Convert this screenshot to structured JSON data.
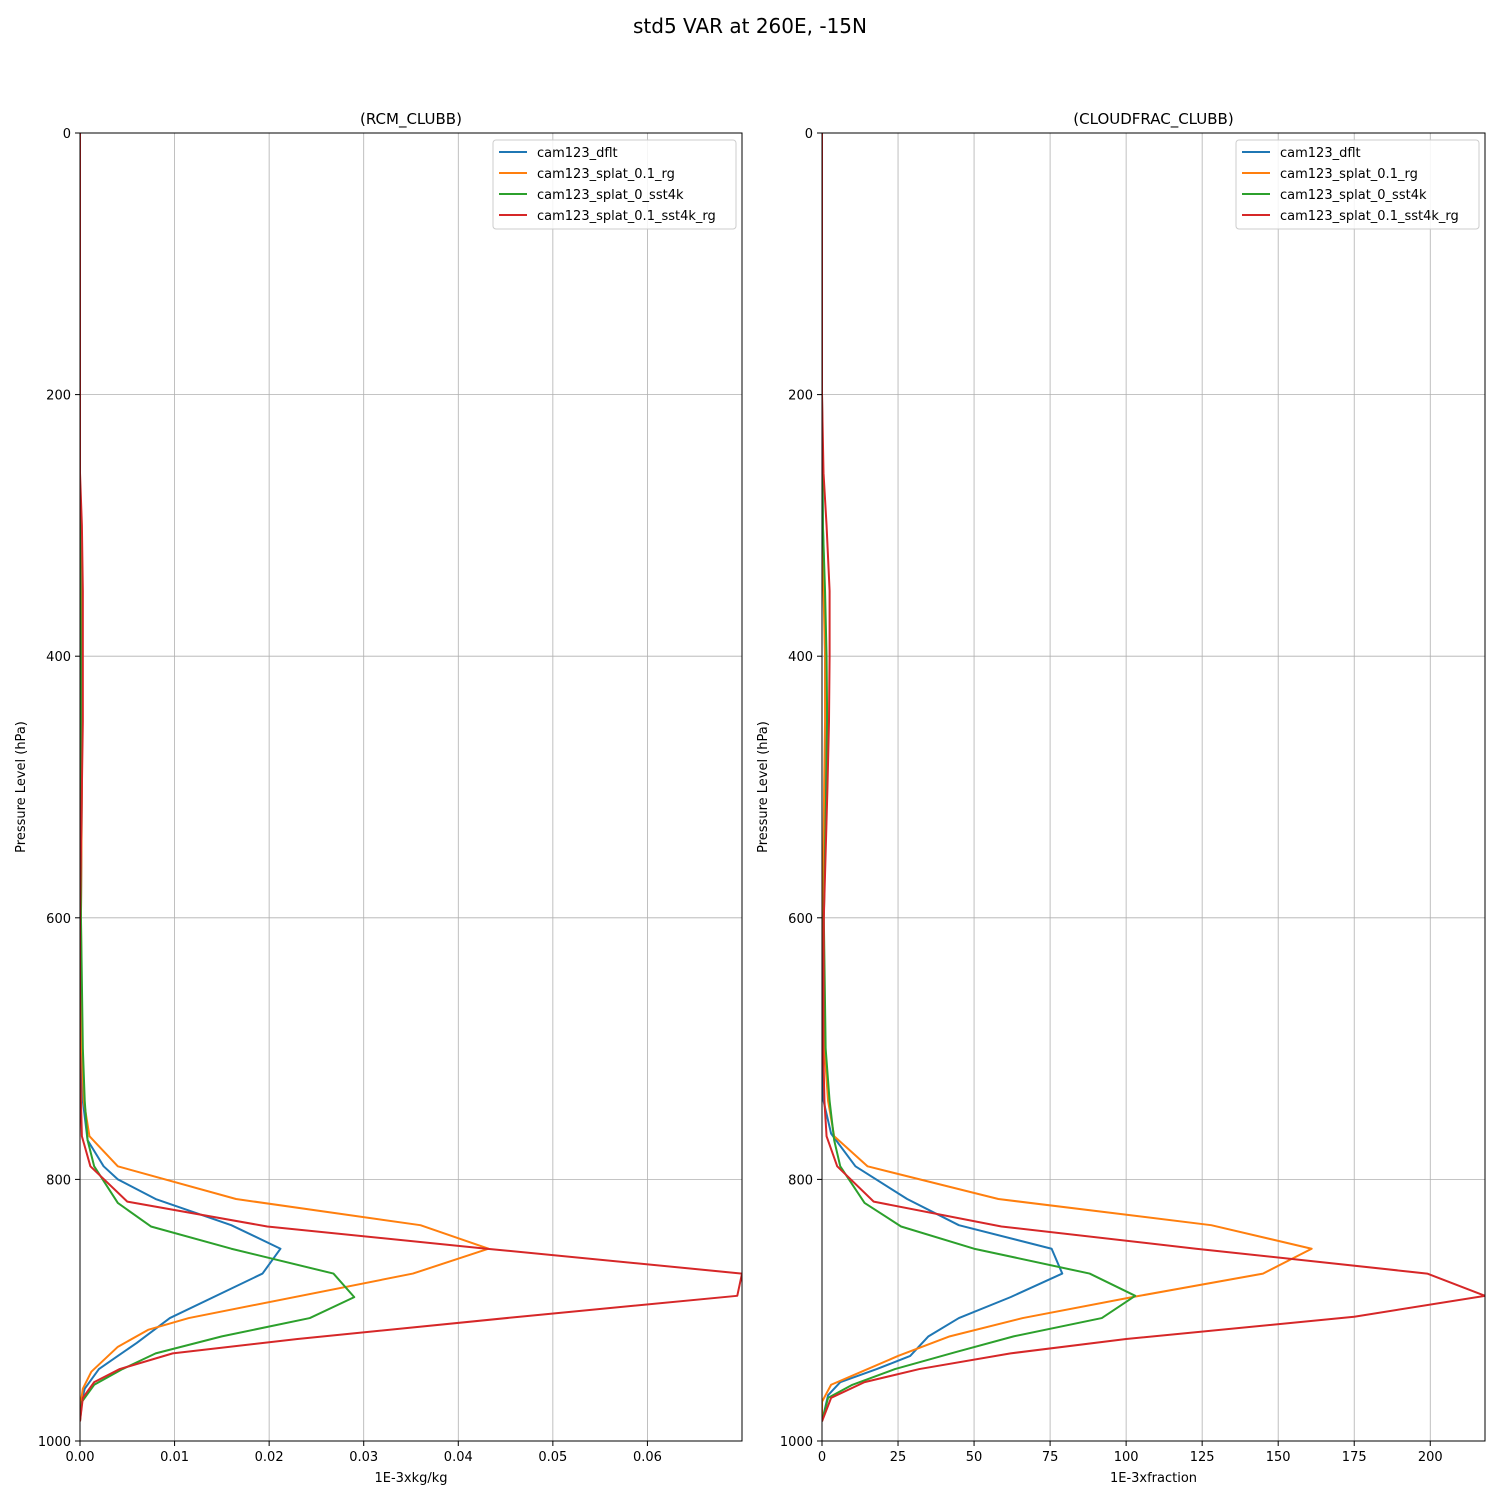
{
  "figure": {
    "title": "std5 VAR at 260E, -15N"
  },
  "chart_data": [
    {
      "type": "line",
      "title": "(RCM_CLUBB)",
      "xlabel": "1E-3xkg/kg",
      "ylabel": "Pressure Level (hPa)",
      "xlim": [
        0,
        0.07
      ],
      "ylim": [
        1000,
        0
      ],
      "xticks": [
        0.0,
        0.01,
        0.02,
        0.03,
        0.04,
        0.05,
        0.06
      ],
      "xtick_labels": [
        "0.00",
        "0.01",
        "0.02",
        "0.03",
        "0.04",
        "0.05",
        "0.06"
      ],
      "yticks": [
        0,
        200,
        400,
        600,
        800,
        1000
      ],
      "ytick_labels": [
        "0",
        "200",
        "400",
        "600",
        "800",
        "1000"
      ],
      "grid": true,
      "legend_position": "top-right",
      "series": [
        {
          "name": "cam123_dflt",
          "color": "#1f77b4",
          "points": [
            [
              0,
              0
            ],
            [
              0,
              200
            ],
            [
              0,
              300
            ],
            [
              0.0002,
              400
            ],
            [
              0.0002,
              500
            ],
            [
              0.0001,
              600
            ],
            [
              0.0001,
              700
            ],
            [
              0.0003,
              740
            ],
            [
              0.0008,
              770
            ],
            [
              0.0025,
              790
            ],
            [
              0.004,
              800
            ],
            [
              0.008,
              815
            ],
            [
              0.016,
              835
            ],
            [
              0.0212,
              853
            ],
            [
              0.0193,
              872
            ],
            [
              0.0095,
              906
            ],
            [
              0.006,
              925
            ],
            [
              0.004,
              935
            ],
            [
              0.002,
              945
            ],
            [
              0.0005,
              960
            ],
            [
              0,
              975
            ],
            [
              0,
              985
            ]
          ]
        },
        {
          "name": "cam123_splat_0.1_rg",
          "color": "#ff7f0e",
          "points": [
            [
              0,
              0
            ],
            [
              0,
              200
            ],
            [
              0,
              300
            ],
            [
              0.0002,
              400
            ],
            [
              0.0002,
              500
            ],
            [
              0.0001,
              600
            ],
            [
              0.0002,
              700
            ],
            [
              0.0004,
              740
            ],
            [
              0.001,
              767
            ],
            [
              0.004,
              790
            ],
            [
              0.0165,
              815
            ],
            [
              0.036,
              835
            ],
            [
              0.0432,
              853
            ],
            [
              0.0352,
              872
            ],
            [
              0.0115,
              906
            ],
            [
              0.0072,
              915
            ],
            [
              0.004,
              928
            ],
            [
              0.0012,
              947
            ],
            [
              0.0003,
              960
            ],
            [
              0,
              975
            ],
            [
              0,
              985
            ]
          ]
        },
        {
          "name": "cam123_splat_0_sst4k",
          "color": "#2ca02c",
          "points": [
            [
              0,
              0
            ],
            [
              0,
              200
            ],
            [
              0,
              300
            ],
            [
              0.0001,
              400
            ],
            [
              0.0001,
              500
            ],
            [
              0.0001,
              600
            ],
            [
              0.0003,
              700
            ],
            [
              0.0005,
              740
            ],
            [
              0.0008,
              770
            ],
            [
              0.0015,
              790
            ],
            [
              0.004,
              818
            ],
            [
              0.0075,
              836
            ],
            [
              0.016,
              853
            ],
            [
              0.0268,
              872
            ],
            [
              0.029,
              890
            ],
            [
              0.0243,
              906
            ],
            [
              0.015,
              920
            ],
            [
              0.008,
              933
            ],
            [
              0.0045,
              945
            ],
            [
              0.0015,
              957
            ],
            [
              0.0002,
              970
            ],
            [
              0,
              985
            ]
          ]
        },
        {
          "name": "cam123_splat_0.1_sst4k_rg",
          "color": "#d62728",
          "points": [
            [
              0,
              0
            ],
            [
              0,
              200
            ],
            [
              0,
              260
            ],
            [
              0.0002,
              300
            ],
            [
              0.0003,
              350
            ],
            [
              0.0003,
              400
            ],
            [
              0.0003,
              450
            ],
            [
              0.0002,
              500
            ],
            [
              0.0001,
              550
            ],
            [
              0,
              600
            ],
            [
              0,
              700
            ],
            [
              0.0001,
              740
            ],
            [
              0.0002,
              767
            ],
            [
              0.0011,
              790
            ],
            [
              0.005,
              817
            ],
            [
              0.0198,
              836
            ],
            [
              0.043,
              853
            ],
            [
              0.07,
              872
            ],
            [
              0.0695,
              889
            ],
            [
              0.0465,
              905
            ],
            [
              0.023,
              922
            ],
            [
              0.0098,
              933
            ],
            [
              0.0042,
              945
            ],
            [
              0.0015,
              955
            ],
            [
              0.0003,
              967
            ],
            [
              0,
              985
            ]
          ]
        }
      ]
    },
    {
      "type": "line",
      "title": "(CLOUDFRAC_CLUBB)",
      "xlabel": "1E-3xfraction",
      "ylabel": "Pressure Level (hPa)",
      "xlim": [
        0,
        218
      ],
      "ylim": [
        1000,
        0
      ],
      "xticks": [
        0,
        25,
        50,
        75,
        100,
        125,
        150,
        175,
        200
      ],
      "xtick_labels": [
        "0",
        "25",
        "50",
        "75",
        "100",
        "125",
        "150",
        "175",
        "200"
      ],
      "yticks": [
        0,
        200,
        400,
        600,
        800,
        1000
      ],
      "ytick_labels": [
        "0",
        "200",
        "400",
        "600",
        "800",
        "1000"
      ],
      "grid": true,
      "legend_position": "top-right",
      "series": [
        {
          "name": "cam123_dflt",
          "color": "#1f77b4",
          "points": [
            [
              0,
              0
            ],
            [
              0,
              200
            ],
            [
              0.3,
              300
            ],
            [
              0.8,
              350
            ],
            [
              1,
              400
            ],
            [
              1.2,
              450
            ],
            [
              1,
              500
            ],
            [
              0.6,
              550
            ],
            [
              0.4,
              600
            ],
            [
              0.4,
              700
            ],
            [
              0.5,
              740
            ],
            [
              3,
              765
            ],
            [
              11,
              790
            ],
            [
              28,
              815
            ],
            [
              45,
              835
            ],
            [
              75.5,
              853
            ],
            [
              79,
              872
            ],
            [
              62,
              890
            ],
            [
              45,
              906
            ],
            [
              35,
              920
            ],
            [
              29,
              935
            ],
            [
              18,
              945
            ],
            [
              6,
              955
            ],
            [
              2,
              965
            ],
            [
              0,
              985
            ]
          ]
        },
        {
          "name": "cam123_splat_0.1_rg",
          "color": "#ff7f0e",
          "points": [
            [
              0,
              0
            ],
            [
              0,
              200
            ],
            [
              0,
              300
            ],
            [
              0.5,
              350
            ],
            [
              1,
              400
            ],
            [
              1,
              450
            ],
            [
              0.7,
              500
            ],
            [
              0.5,
              550
            ],
            [
              0.4,
              600
            ],
            [
              0.8,
              700
            ],
            [
              2,
              740
            ],
            [
              4,
              767
            ],
            [
              15,
              790
            ],
            [
              58,
              815
            ],
            [
              128,
              835
            ],
            [
              161,
              853
            ],
            [
              145,
              872
            ],
            [
              102,
              890
            ],
            [
              66,
              906
            ],
            [
              42,
              920
            ],
            [
              25,
              935
            ],
            [
              13,
              947
            ],
            [
              3,
              957
            ],
            [
              0,
              970
            ],
            [
              0,
              985
            ]
          ]
        },
        {
          "name": "cam123_splat_0_sst4k",
          "color": "#2ca02c",
          "points": [
            [
              0,
              0
            ],
            [
              0,
              200
            ],
            [
              0.3,
              300
            ],
            [
              1,
              350
            ],
            [
              1.5,
              400
            ],
            [
              1.7,
              450
            ],
            [
              1.4,
              500
            ],
            [
              1,
              550
            ],
            [
              0.6,
              600
            ],
            [
              1.2,
              700
            ],
            [
              2.5,
              740
            ],
            [
              4,
              770
            ],
            [
              6,
              790
            ],
            [
              14,
              818
            ],
            [
              26,
              836
            ],
            [
              50,
              853
            ],
            [
              88,
              872
            ],
            [
              103,
              889
            ],
            [
              92,
              906
            ],
            [
              63,
              920
            ],
            [
              44,
              932
            ],
            [
              24,
              945
            ],
            [
              10,
              957
            ],
            [
              2,
              967
            ],
            [
              0,
              985
            ]
          ]
        },
        {
          "name": "cam123_splat_0.1_sst4k_rg",
          "color": "#d62728",
          "points": [
            [
              0,
              0
            ],
            [
              0,
              200
            ],
            [
              0.5,
              260
            ],
            [
              1.5,
              300
            ],
            [
              2.5,
              350
            ],
            [
              2.5,
              400
            ],
            [
              2.3,
              450
            ],
            [
              1.8,
              500
            ],
            [
              1.2,
              550
            ],
            [
              0.6,
              600
            ],
            [
              0.4,
              700
            ],
            [
              0.8,
              740
            ],
            [
              1.5,
              767
            ],
            [
              5,
              790
            ],
            [
              17,
              817
            ],
            [
              59,
              836
            ],
            [
              123,
              853
            ],
            [
              199,
              872
            ],
            [
              218,
              889
            ],
            [
              175,
              905
            ],
            [
              100,
              922
            ],
            [
              62,
              933
            ],
            [
              32,
              945
            ],
            [
              14,
              955
            ],
            [
              3,
              967
            ],
            [
              0,
              985
            ]
          ]
        }
      ]
    }
  ]
}
